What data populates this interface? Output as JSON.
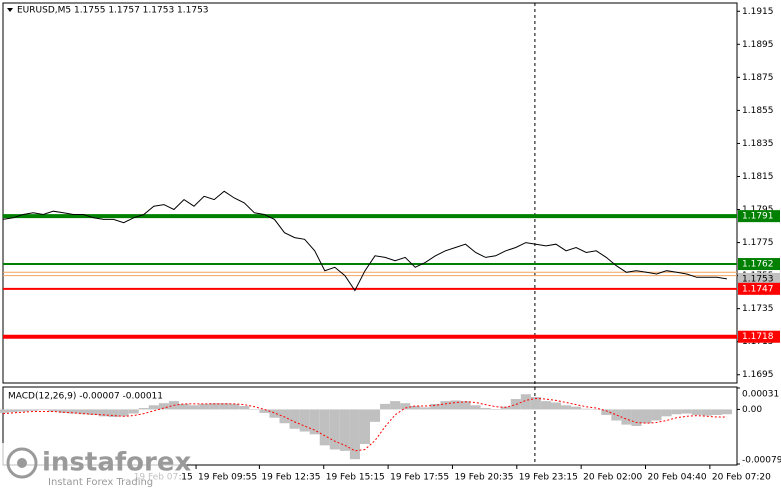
{
  "chart_data": [
    {
      "type": "line",
      "title": "EURUSD,M5  1.1755 1.1757 1.1753 1.1753",
      "color": "#000000",
      "values": [
        1.1789,
        1.179,
        1.1792,
        1.1793,
        1.1792,
        1.1794,
        1.1793,
        1.1792,
        1.1792,
        1.179,
        1.1789,
        1.1789,
        1.1787,
        1.179,
        1.1792,
        1.1797,
        1.1798,
        1.1795,
        1.1801,
        1.1797,
        1.1803,
        1.1801,
        1.1806,
        1.1802,
        1.1799,
        1.1793,
        1.1792,
        1.1789,
        1.1781,
        1.1778,
        1.1777,
        1.177,
        1.1758,
        1.176,
        1.1755,
        1.1746,
        1.1758,
        1.1767,
        1.1766,
        1.1764,
        1.1766,
        1.176,
        1.1763,
        1.1767,
        1.177,
        1.1772,
        1.1774,
        1.1769,
        1.1766,
        1.1767,
        1.177,
        1.1772,
        1.1775,
        1.1774,
        1.1773,
        1.1774,
        1.177,
        1.1772,
        1.1769,
        1.177,
        1.1766,
        1.1761,
        1.1757,
        1.1758,
        1.1757,
        1.1756,
        1.1758,
        1.1757,
        1.1756,
        1.1754,
        1.1754,
        1.1754,
        1.1753
      ],
      "ylim": [
        1.169,
        1.192
      ],
      "yticks": [
        1.1915,
        1.1895,
        1.1875,
        1.1855,
        1.1835,
        1.1815,
        1.1795,
        1.1775,
        1.1755,
        1.1735,
        1.1715,
        1.1695
      ],
      "xlim": [
        0,
        73
      ],
      "xticks": [
        {
          "value": 12.8,
          "label": "19 Feb 07:15"
        },
        {
          "value": 19.2,
          "label": "19 Feb 09:55"
        },
        {
          "value": 25.5,
          "label": "19 Feb 12:35"
        },
        {
          "value": 31.9,
          "label": "19 Feb 15:15"
        },
        {
          "value": 38.3,
          "label": "19 Feb 17:55"
        },
        {
          "value": 44.7,
          "label": "19 Feb 20:35"
        },
        {
          "value": 51.1,
          "label": "19 Feb 23:15"
        },
        {
          "value": 57.5,
          "label": "20 Feb 02:00"
        },
        {
          "value": 63.9,
          "label": "20 Feb 04:40"
        },
        {
          "value": 70.3,
          "label": "20 Feb 07:20"
        }
      ],
      "levels": [
        {
          "value": 1.1791,
          "color": "#008000",
          "style": "thick"
        },
        {
          "value": 1.1762,
          "color": "#008000",
          "style": "thin"
        },
        {
          "value": 1.1753,
          "color": "#c0c0c0",
          "style": "none"
        },
        {
          "value": 1.1747,
          "color": "#ff0000",
          "style": "thin"
        },
        {
          "value": 1.1718,
          "color": "#ff0000",
          "style": "thick"
        }
      ],
      "bid_ask_lines": [
        1.1757,
        1.1755
      ],
      "bid_ask_color": "#f4a460",
      "cursor_x": 52.9
    },
    {
      "type": "macd",
      "title": "MACD(12,26,9) -0.00007 -0.00011",
      "color": "#c0c0c0",
      "values": [
        -5e-05,
        -4e-05,
        -3e-05,
        -2e-05,
        -1e-05,
        -3e-05,
        -5e-05,
        -6e-05,
        -7e-05,
        -8e-05,
        -0.0001,
        -0.00011,
        -0.0001,
        -6e-05,
        2e-05,
        6e-05,
        9e-05,
        0.00012,
        8e-05,
        6e-05,
        8e-05,
        9e-05,
        9e-05,
        8e-05,
        5e-05,
        0,
        -5e-05,
        -0.00012,
        -0.0002,
        -0.00028,
        -0.00032,
        -0.00036,
        -0.00052,
        -0.00058,
        -0.0006,
        -0.00072,
        -0.0005,
        -0.00018,
        8e-05,
        0.00012,
        9e-05,
        5e-05,
        3e-05,
        8e-05,
        0.00012,
        0.00013,
        0.00012,
        6e-05,
        2e-05,
        0,
        4e-05,
        0.00015,
        0.00022,
        0.00018,
        0.00012,
        0.0001,
        6e-05,
        4e-05,
        1e-05,
        0,
        -8e-05,
        -0.00016,
        -0.00022,
        -0.00024,
        -0.0002,
        -0.00016,
        -0.0001,
        -7e-05,
        -6e-05,
        -8e-05,
        -9e-05,
        -8e-05,
        -7e-05
      ],
      "signal": [
        -6e-05,
        -5e-05,
        -4e-05,
        -3e-05,
        -3e-05,
        -3e-05,
        -4e-05,
        -5e-05,
        -6e-05,
        -7e-05,
        -8e-05,
        -9e-05,
        -0.0001,
        -9e-05,
        -6e-05,
        -2e-05,
        2e-05,
        6e-05,
        8e-05,
        8e-05,
        8e-05,
        8e-05,
        8e-05,
        8e-05,
        7e-05,
        4e-05,
        0,
        -5e-05,
        -0.00011,
        -0.00018,
        -0.00024,
        -0.0003,
        -0.00038,
        -0.00046,
        -0.00052,
        -0.0006,
        -0.00058,
        -0.00045,
        -0.00025,
        -8e-05,
        2e-05,
        5e-05,
        5e-05,
        6e-05,
        8e-05,
        0.0001,
        0.00011,
        0.0001,
        7e-05,
        4e-05,
        3e-05,
        7e-05,
        0.00013,
        0.00016,
        0.00015,
        0.00013,
        0.0001,
        7e-05,
        4e-05,
        2e-05,
        -2e-05,
        -8e-05,
        -0.00014,
        -0.00019,
        -0.0002,
        -0.00019,
        -0.00016,
        -0.00012,
        -0.0001,
        -9e-05,
        -0.0001,
        -0.00011,
        -0.00011
      ],
      "signal_color": "#ff0000",
      "ylim": [
        -0.00079,
        0.00031
      ],
      "yticks": [
        0.00031,
        {
          "value": 0,
          "label": "0.00"
        },
        -0.00079
      ]
    }
  ],
  "watermark": {
    "brand": "instaforex",
    "tagline": "Instant Forex Trading"
  }
}
